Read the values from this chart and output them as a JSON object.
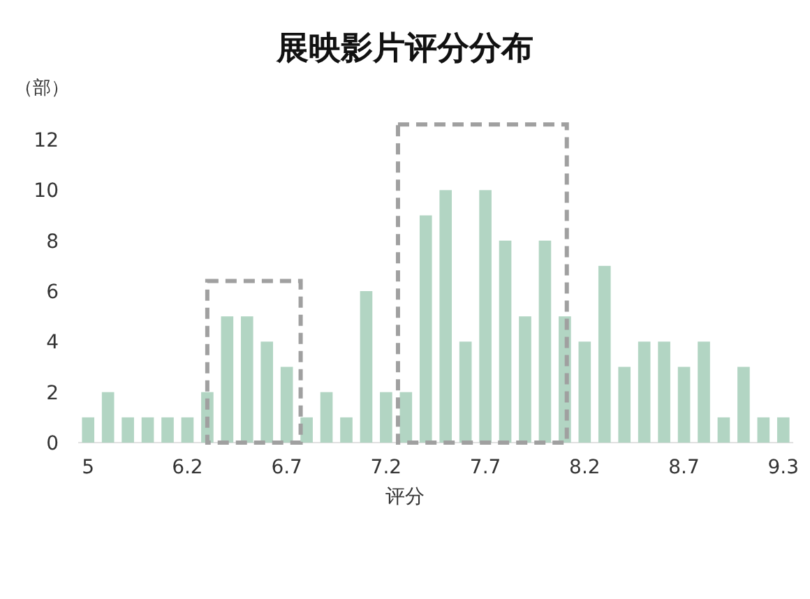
{
  "chart_data": {
    "type": "bar",
    "title": "展映影片评分分布",
    "xlabel": "评分",
    "ylabel": "（部）",
    "categories": [
      "5",
      null,
      null,
      null,
      null,
      "6.2",
      null,
      null,
      null,
      null,
      "6.7",
      null,
      null,
      null,
      null,
      "7.2",
      null,
      null,
      null,
      null,
      "7.7",
      null,
      null,
      null,
      null,
      "8.2",
      null,
      null,
      null,
      null,
      "8.7",
      null,
      null,
      null,
      null,
      "9.3"
    ],
    "values": [
      1,
      2,
      1,
      1,
      1,
      1,
      2,
      5,
      5,
      4,
      3,
      1,
      2,
      1,
      6,
      2,
      2,
      9,
      10,
      4,
      10,
      8,
      5,
      8,
      5,
      4,
      7,
      3,
      4,
      4,
      3,
      4,
      1,
      3,
      1,
      1
    ],
    "color": "#b2d5c3",
    "ylim": [
      0,
      12
    ],
    "yticks": [
      0,
      2,
      4,
      6,
      8,
      10,
      12
    ],
    "grid": false
  }
}
